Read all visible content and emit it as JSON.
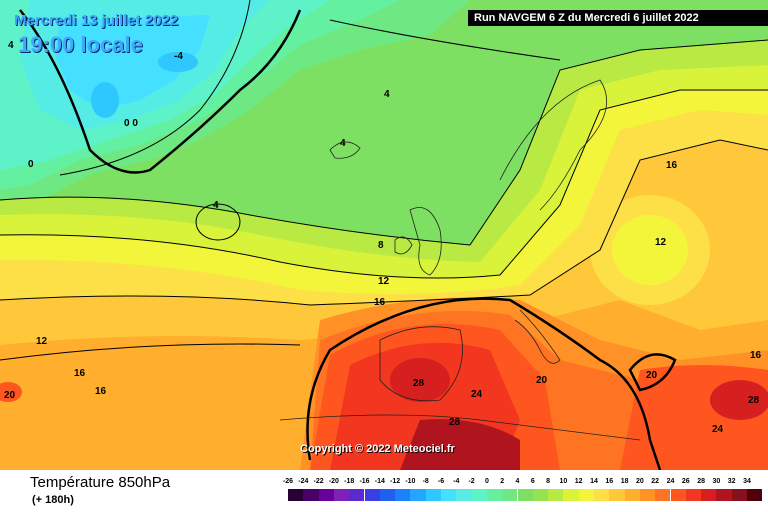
{
  "header": {
    "date": "Mercredi 13 juillet 2022",
    "time": "19:00 locale",
    "run": "Run NAVGEM 6 Z du Mercredi 6 juillet 2022"
  },
  "copyright": "Copyright © 2022 Meteociel.fr",
  "footer": {
    "parameter": "Température 850hPa",
    "step": "(+ 180h)"
  },
  "scale": {
    "labels": [
      "-26",
      "-24",
      "-22",
      "-20",
      "-18",
      "-16",
      "-14",
      "-12",
      "-10",
      "-8",
      "-6",
      "-4",
      "-2",
      "0",
      "2",
      "4",
      "6",
      "8",
      "10",
      "12",
      "14",
      "16",
      "18",
      "20",
      "22",
      "24",
      "26",
      "28",
      "30",
      "32",
      "34"
    ],
    "colors": [
      "#2a0033",
      "#4b0066",
      "#6a0099",
      "#7d22b8",
      "#5a2ad0",
      "#3a3ee6",
      "#2060f0",
      "#1f80ff",
      "#22a6ff",
      "#2ec8ff",
      "#45e0ff",
      "#55ece6",
      "#5ef2c8",
      "#63f0a0",
      "#6ee882",
      "#7ee063",
      "#96e34e",
      "#b9ea43",
      "#d9f23a",
      "#f2f53a",
      "#fde047",
      "#ffc83a",
      "#ffae2e",
      "#ff9126",
      "#ff7422",
      "#ff561f",
      "#f2361f",
      "#d61f1f",
      "#b0141e",
      "#87101a",
      "#500008"
    ]
  },
  "contour_labels": [
    {
      "id": "m4a",
      "text": "4"
    },
    {
      "id": "m4b",
      "text": "-4"
    },
    {
      "id": "c00",
      "text": "0 0"
    },
    {
      "id": "c0",
      "text": "0"
    },
    {
      "id": "c4a",
      "text": "4"
    },
    {
      "id": "c4b",
      "text": "4"
    },
    {
      "id": "c4c",
      "text": "4"
    },
    {
      "id": "c8",
      "text": "8"
    },
    {
      "id": "c12a",
      "text": "12"
    },
    {
      "id": "c12b",
      "text": "12"
    },
    {
      "id": "c12c",
      "text": "12"
    },
    {
      "id": "c16a",
      "text": "16"
    },
    {
      "id": "c16b",
      "text": "16"
    },
    {
      "id": "c16c",
      "text": "16"
    },
    {
      "id": "c16d",
      "text": "16"
    },
    {
      "id": "c16e",
      "text": "16"
    },
    {
      "id": "c20a",
      "text": "20"
    },
    {
      "id": "c20b",
      "text": "20"
    },
    {
      "id": "c20c",
      "text": "20"
    },
    {
      "id": "c24a",
      "text": "24"
    },
    {
      "id": "c24b",
      "text": "24"
    },
    {
      "id": "c28a",
      "text": "28"
    },
    {
      "id": "c28b",
      "text": "28"
    },
    {
      "id": "c28c",
      "text": "28"
    }
  ]
}
